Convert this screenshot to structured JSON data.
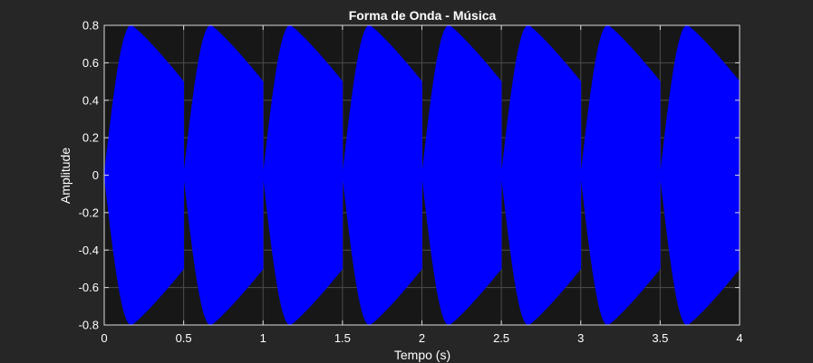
{
  "chart_data": {
    "type": "area",
    "title": "Forma de Onda - Música",
    "xlabel": "Tempo (s)",
    "ylabel": "Amplitude",
    "xlim": [
      0,
      4
    ],
    "ylim": [
      -0.8,
      0.8
    ],
    "xticks": [
      0,
      0.5,
      1,
      1.5,
      2,
      2.5,
      3,
      3.5,
      4
    ],
    "xtick_labels": [
      "0",
      "0.5",
      "1",
      "1.5",
      "2",
      "2.5",
      "3",
      "3.5",
      "4"
    ],
    "yticks": [
      0.8,
      0.6,
      0.4,
      0.2,
      0,
      -0.2,
      -0.4,
      -0.6,
      -0.8
    ],
    "ytick_labels": [
      "0.8",
      "0.6",
      "0.4",
      "0.2",
      "0",
      "-0.2",
      "-0.4",
      "-0.6",
      "-0.8"
    ],
    "grid": true,
    "series": [
      {
        "color": "#0000ff",
        "envelope": {
          "note_period_s": 0.5,
          "note_starts_s": [
            0,
            0.5,
            1,
            1.5,
            2,
            2.5,
            3,
            3.5
          ],
          "attack_s": 0.17,
          "peak_amplitude": 0.8,
          "release_end_amplitude": 0.5
        }
      }
    ]
  },
  "colors": {
    "figure_background": "#262626",
    "axes_background": "#171717",
    "grid": "#4d4d4d",
    "axes_line": "#d9d9d9",
    "text": "#ffffff",
    "signal": "#0000ff"
  }
}
